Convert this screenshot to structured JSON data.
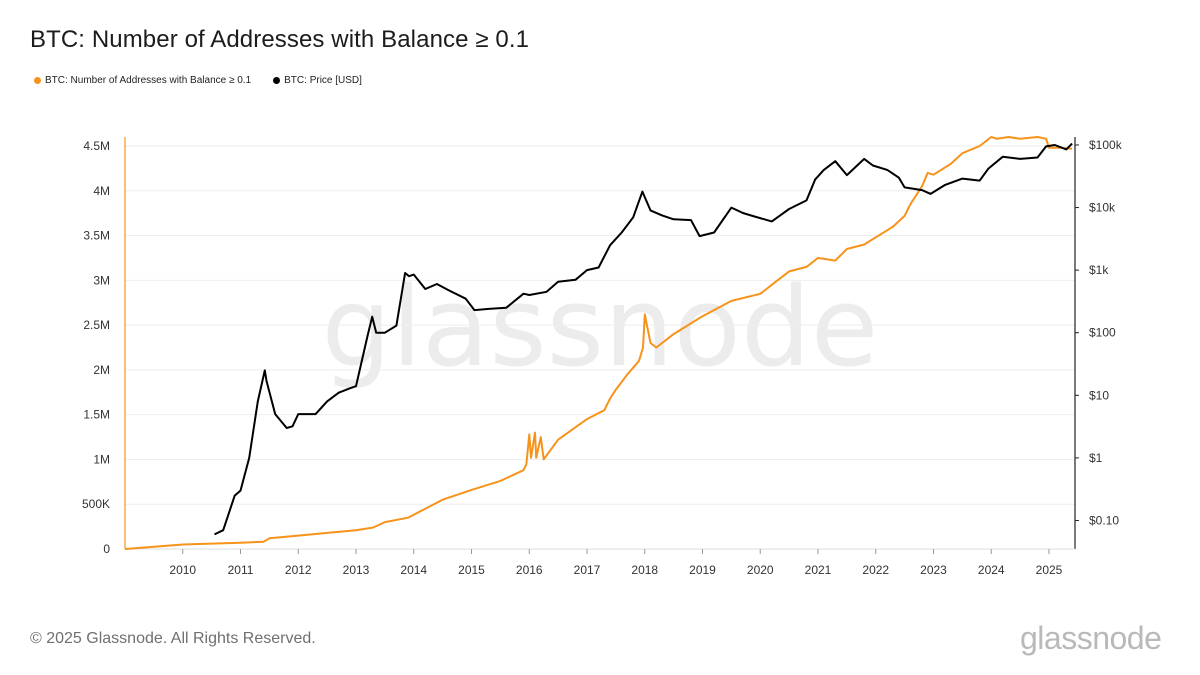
{
  "title": "BTC: Number of Addresses with Balance ≥ 0.1",
  "legend": [
    {
      "label": "BTC: Number of Addresses with Balance ≥ 0.1",
      "color": "#f7931a"
    },
    {
      "label": "BTC: Price [USD]",
      "color": "#000000"
    }
  ],
  "footer": "© 2025 Glassnode. All Rights Reserved.",
  "logo": "glassnode",
  "watermark": "glassnode",
  "chart_data": {
    "type": "line",
    "x_unit": "year",
    "xlim": [
      2009.0,
      2025.45
    ],
    "x_ticks": [
      "2010",
      "2011",
      "2012",
      "2013",
      "2014",
      "2015",
      "2016",
      "2017",
      "2018",
      "2019",
      "2020",
      "2021",
      "2022",
      "2023",
      "2024",
      "2025"
    ],
    "y_left": {
      "ylim": [
        0,
        4.5
      ],
      "unit": "millions",
      "tick_values": [
        0,
        0.5,
        1,
        1.5,
        2,
        2.5,
        3,
        3.5,
        4,
        4.5
      ],
      "tick_labels": [
        "0",
        "500K",
        "1M",
        "1.5M",
        "2M",
        "2.5M",
        "3M",
        "3.5M",
        "4M",
        "4.5M"
      ]
    },
    "y_right": {
      "scale": "log",
      "ylim": [
        0.035,
        180000
      ],
      "tick_values": [
        0.1,
        1,
        10,
        100,
        1000,
        10000,
        100000
      ],
      "tick_labels": [
        "$0.10",
        "$1",
        "$10",
        "$100",
        "$1k",
        "$10k",
        "$100k"
      ]
    },
    "series": [
      {
        "name": "BTC: Number of Addresses with Balance ≥ 0.1",
        "axis": "left",
        "color": "#f7931a",
        "x": [
          2009.0,
          2010.0,
          2010.5,
          2011.0,
          2011.4,
          2011.5,
          2012.0,
          2012.5,
          2013.0,
          2013.3,
          2013.5,
          2013.9,
          2014.2,
          2014.5,
          2015.0,
          2015.5,
          2015.9,
          2015.95,
          2016.0,
          2016.03,
          2016.1,
          2016.12,
          2016.2,
          2016.25,
          2016.5,
          2017.0,
          2017.3,
          2017.4,
          2017.5,
          2017.7,
          2017.9,
          2017.97,
          2018.0,
          2018.1,
          2018.2,
          2018.5,
          2019.0,
          2019.5,
          2020.0,
          2020.2,
          2020.5,
          2020.8,
          2021.0,
          2021.3,
          2021.5,
          2021.8,
          2022.0,
          2022.3,
          2022.5,
          2022.6,
          2022.8,
          2022.9,
          2023.0,
          2023.3,
          2023.5,
          2023.8,
          2024.0,
          2024.1,
          2024.3,
          2024.5,
          2024.8,
          2024.95,
          2025.0,
          2025.2,
          2025.4
        ],
        "y": [
          0.0,
          0.05,
          0.06,
          0.07,
          0.08,
          0.12,
          0.15,
          0.18,
          0.21,
          0.24,
          0.3,
          0.35,
          0.45,
          0.55,
          0.66,
          0.76,
          0.88,
          0.95,
          1.28,
          1.02,
          1.3,
          1.02,
          1.25,
          1.0,
          1.22,
          1.45,
          1.55,
          1.68,
          1.78,
          1.95,
          2.1,
          2.25,
          2.62,
          2.3,
          2.25,
          2.4,
          2.6,
          2.77,
          2.85,
          2.95,
          3.1,
          3.15,
          3.25,
          3.22,
          3.35,
          3.4,
          3.48,
          3.6,
          3.72,
          3.85,
          4.05,
          4.2,
          4.18,
          4.3,
          4.42,
          4.5,
          4.6,
          4.58,
          4.6,
          4.58,
          4.6,
          4.58,
          4.48,
          4.48,
          4.47
        ]
      },
      {
        "name": "BTC: Price [USD]",
        "axis": "right",
        "color": "#000000",
        "x": [
          2010.55,
          2010.7,
          2010.9,
          2011.0,
          2011.15,
          2011.3,
          2011.42,
          2011.45,
          2011.6,
          2011.8,
          2011.9,
          2012.0,
          2012.3,
          2012.5,
          2012.7,
          2012.9,
          2013.0,
          2013.2,
          2013.28,
          2013.35,
          2013.5,
          2013.7,
          2013.85,
          2013.92,
          2014.0,
          2014.2,
          2014.4,
          2014.6,
          2014.9,
          2015.05,
          2015.3,
          2015.6,
          2015.9,
          2016.0,
          2016.3,
          2016.5,
          2016.8,
          2017.0,
          2017.2,
          2017.4,
          2017.6,
          2017.8,
          2017.96,
          2018.1,
          2018.3,
          2018.5,
          2018.8,
          2018.95,
          2019.2,
          2019.5,
          2019.7,
          2019.9,
          2020.2,
          2020.5,
          2020.8,
          2020.95,
          2021.1,
          2021.3,
          2021.5,
          2021.8,
          2021.95,
          2022.2,
          2022.4,
          2022.5,
          2022.8,
          2022.95,
          2023.2,
          2023.5,
          2023.8,
          2023.95,
          2024.2,
          2024.5,
          2024.8,
          2024.95,
          2025.1,
          2025.3,
          2025.4
        ],
        "y": [
          0.06,
          0.07,
          0.25,
          0.3,
          1.0,
          8.0,
          25.0,
          17.0,
          5.0,
          3.0,
          3.2,
          5.0,
          5.0,
          8.0,
          11.0,
          13.0,
          14.0,
          90.0,
          180.0,
          100.0,
          100.0,
          130.0,
          900.0,
          800.0,
          850.0,
          500.0,
          600.0,
          480.0,
          350.0,
          230.0,
          240.0,
          250.0,
          420.0,
          400.0,
          450.0,
          650.0,
          700.0,
          1000.0,
          1100.0,
          2500.0,
          4000.0,
          7000.0,
          18000.0,
          9000.0,
          7500.0,
          6500.0,
          6300.0,
          3500.0,
          4000.0,
          10000.0,
          8200.0,
          7200.0,
          6000.0,
          9500.0,
          13000.0,
          28000.0,
          40000.0,
          55000.0,
          33000.0,
          60000.0,
          47000.0,
          40000.0,
          30000.0,
          21000.0,
          19000.0,
          16500.0,
          23000.0,
          29000.0,
          27000.0,
          42000.0,
          65000.0,
          60000.0,
          63000.0,
          95000.0,
          100000.0,
          85000.0,
          105000.0
        ]
      }
    ]
  }
}
